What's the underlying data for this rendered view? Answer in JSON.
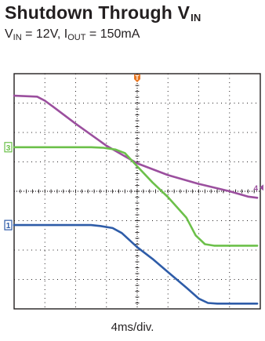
{
  "header": {
    "title_main": "Shutdown Through V",
    "title_sub": "IN",
    "cond_v": "V",
    "cond_v_sub": "IN",
    "cond_v_rest": " = 12V, I",
    "cond_i_sub": "OUT",
    "cond_i_rest": " = 150mA"
  },
  "chart_data": {
    "type": "line",
    "title": "Shutdown Through VIN",
    "subtitle": "VIN = 12V, IOUT = 150mA",
    "xlabel": "4ms/div.",
    "ylabel": "",
    "grid": true,
    "x_divisions": 8,
    "y_divisions": 8,
    "xlim": [
      0,
      8
    ],
    "ylim": [
      0,
      8
    ],
    "trigger_marker": {
      "label": "T",
      "x": 4.0,
      "color": "#e87722"
    },
    "series": [
      {
        "marker": "4",
        "color": "#9b4f9e",
        "marker_position": "right",
        "x": [
          0,
          0.75,
          1.0,
          1.3,
          2.0,
          3.0,
          4.0,
          5.0,
          6.0,
          7.0,
          7.6,
          7.9
        ],
        "y": [
          7.25,
          7.22,
          7.08,
          6.85,
          6.3,
          5.55,
          4.95,
          4.55,
          4.25,
          4.0,
          3.82,
          3.78
        ]
      },
      {
        "marker": "3",
        "color": "#6cc04a",
        "marker_position": "left",
        "x": [
          0,
          2.5,
          2.9,
          3.3,
          3.6,
          4.0,
          4.5,
          5.0,
          5.6,
          5.9,
          6.2,
          6.5,
          7.9
        ],
        "y": [
          5.5,
          5.5,
          5.48,
          5.42,
          5.3,
          4.85,
          4.3,
          3.8,
          3.1,
          2.5,
          2.2,
          2.15,
          2.15
        ]
      },
      {
        "marker": "1",
        "color": "#2e5ca8",
        "marker_position": "left",
        "x": [
          0,
          2.5,
          2.8,
          3.2,
          3.5,
          4.0,
          4.5,
          5.0,
          5.6,
          6.0,
          6.3,
          6.6,
          7.9
        ],
        "y": [
          2.85,
          2.85,
          2.82,
          2.75,
          2.58,
          2.1,
          1.7,
          1.25,
          0.72,
          0.35,
          0.2,
          0.18,
          0.18
        ]
      }
    ]
  }
}
